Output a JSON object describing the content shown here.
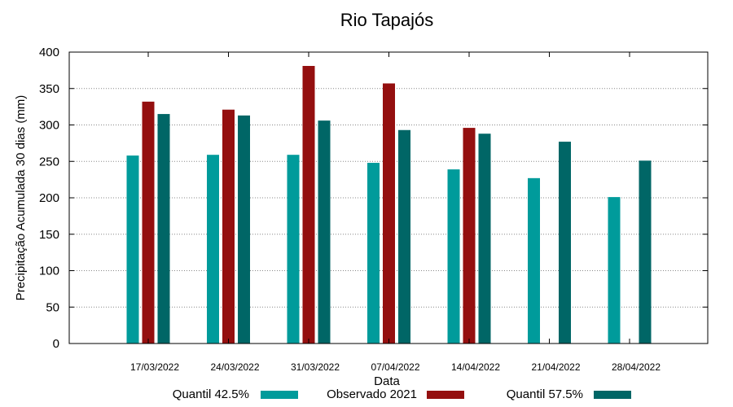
{
  "chart_data": {
    "type": "bar",
    "title": "Rio Tapajós",
    "xlabel": "Data",
    "ylabel": "Precipitação Acumulada 30 dias (mm)",
    "ylim": [
      0,
      400
    ],
    "yticks": [
      0,
      50,
      100,
      150,
      200,
      250,
      300,
      350,
      400
    ],
    "grid": true,
    "legend_position": "bottom",
    "categories": [
      "17/03/2022",
      "24/03/2022",
      "31/03/2022",
      "07/04/2022",
      "14/04/2022",
      "21/04/2022",
      "28/04/2022"
    ],
    "series": [
      {
        "name": "Quantil 42.5%",
        "color": "#009b9b",
        "values": [
          258,
          259,
          259,
          248,
          239,
          227,
          201
        ]
      },
      {
        "name": "Observado 2021",
        "color": "#940f0f",
        "values": [
          332,
          321,
          381,
          357,
          296,
          null,
          null
        ]
      },
      {
        "name": "Quantil 57.5%",
        "color": "#006666",
        "values": [
          315,
          313,
          306,
          293,
          288,
          277,
          251
        ]
      }
    ]
  }
}
